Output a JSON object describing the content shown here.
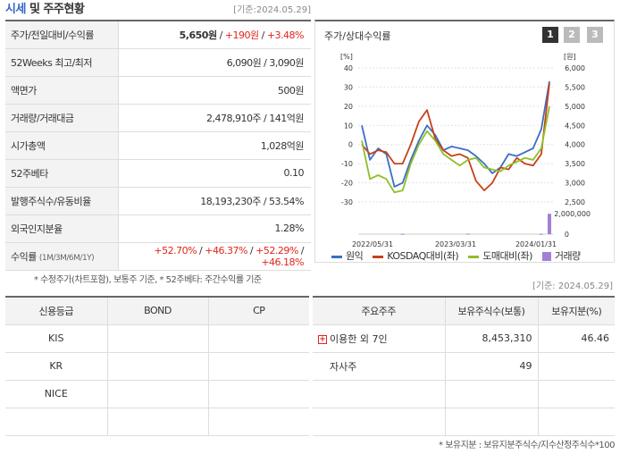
{
  "header": {
    "title_accent": "시세",
    "title_rest": " 및 주주현황",
    "base_date": "[기준:2024.05.29]"
  },
  "info": {
    "price": {
      "label": "주가/전일대비/수익률",
      "price": "5,650원",
      "sep1": " / ",
      "change": "+190원",
      "sep2": " / ",
      "rate": "+3.48%"
    },
    "w52": {
      "label": "52Weeks 최고/최저",
      "value": "6,090원 / 3,090원"
    },
    "par": {
      "label": "액면가",
      "value": "500원"
    },
    "volume": {
      "label": "거래량/거래대금",
      "value": "2,478,910주 / 141억원"
    },
    "mcap": {
      "label": "시가총액",
      "value": "1,028억원"
    },
    "beta": {
      "label": "52주베타",
      "value": "0.10"
    },
    "shares": {
      "label": "발행주식수/유동비율",
      "value": "18,193,230주 / 53.54%"
    },
    "foreign": {
      "label": "외국인지분율",
      "value": "1.28%"
    },
    "returns": {
      "label": "수익률",
      "label_small": "(1M/3M/6M/1Y)",
      "r1": "+52.70%",
      "r2": "+46.37%",
      "r3": "+52.29%",
      "r4": "+46.18%",
      "sep": " / "
    }
  },
  "note1": "* 수정주가(차트포함), 보통주 기준, * 52주베타: 주간수익률 기준",
  "chart_panel": {
    "title": "주가/상대수익률",
    "pages": [
      "1",
      "2",
      "3"
    ]
  },
  "chart_data": {
    "type": "line",
    "y_left_unit": "[%]",
    "y_right_unit": "[원]",
    "ylim_left": [
      -30,
      40
    ],
    "ylim_right": [
      2500,
      6000
    ],
    "y_left_ticks": [
      "40",
      "30",
      "20",
      "10",
      "0",
      "-10",
      "-20",
      "-30"
    ],
    "y_right_ticks": [
      "6,000",
      "5,500",
      "5,000",
      "4,500",
      "4,000",
      "3,500",
      "3,000",
      "2,500"
    ],
    "volume_ticks": [
      "2,000,000",
      "0"
    ],
    "x_labels": [
      "2022/05/31",
      "2023/03/31",
      "2024/01/31"
    ],
    "series": [
      {
        "name": "원익",
        "color": "#3a6fc4",
        "values": [
          10,
          -8,
          -2,
          -5,
          -22,
          -20,
          -8,
          2,
          10,
          5,
          -3,
          -1,
          -2,
          -3,
          -6,
          -10,
          -15,
          -12,
          -5,
          -6,
          -4,
          -2,
          8,
          33
        ]
      },
      {
        "name": "KOSDAQ대비(좌)",
        "color": "#c8401a",
        "values": [
          0,
          -5,
          -3,
          -4,
          -10,
          -10,
          0,
          12,
          18,
          3,
          -3,
          -6,
          -5,
          -7,
          -19,
          -24,
          -20,
          -12,
          -13,
          -7,
          -10,
          -11,
          -5,
          32
        ]
      },
      {
        "name": "도매대비(좌)",
        "color": "#8fbf27",
        "values": [
          2,
          -18,
          -16,
          -18,
          -25,
          -24,
          -10,
          0,
          7,
          2,
          -5,
          -8,
          -11,
          -8,
          -7,
          -12,
          -13,
          -14,
          -11,
          -9,
          -7,
          -8,
          -2,
          20
        ]
      }
    ],
    "volume": {
      "name": "거래량",
      "color": "#a47fd6",
      "values": [
        0,
        0,
        0,
        0,
        0,
        40000,
        0,
        0,
        0,
        0,
        0,
        0,
        0,
        60000,
        0,
        0,
        0,
        0,
        0,
        0,
        0,
        0,
        30000,
        2478910
      ],
      "max": 2500000
    }
  },
  "base_date2": "[기준: 2024.05.29]",
  "credit": {
    "headers": [
      "신용등급",
      "BOND",
      "CP"
    ],
    "rows": [
      [
        "KIS",
        "",
        ""
      ],
      [
        "KR",
        "",
        ""
      ],
      [
        "NICE",
        "",
        ""
      ]
    ]
  },
  "holders": {
    "headers": [
      "주요주주",
      "보유주식수(보통)",
      "보유지분(%)"
    ],
    "rows": [
      {
        "name": "이용한 외 7인",
        "shares": "8,453,310",
        "pct": "46.46",
        "expand": "+"
      },
      {
        "name": "자사주",
        "shares": "49",
        "pct": "",
        "expand": ""
      }
    ]
  },
  "note2": "* 보유지분 : 보유지분주식수/지수산정주식수*100"
}
